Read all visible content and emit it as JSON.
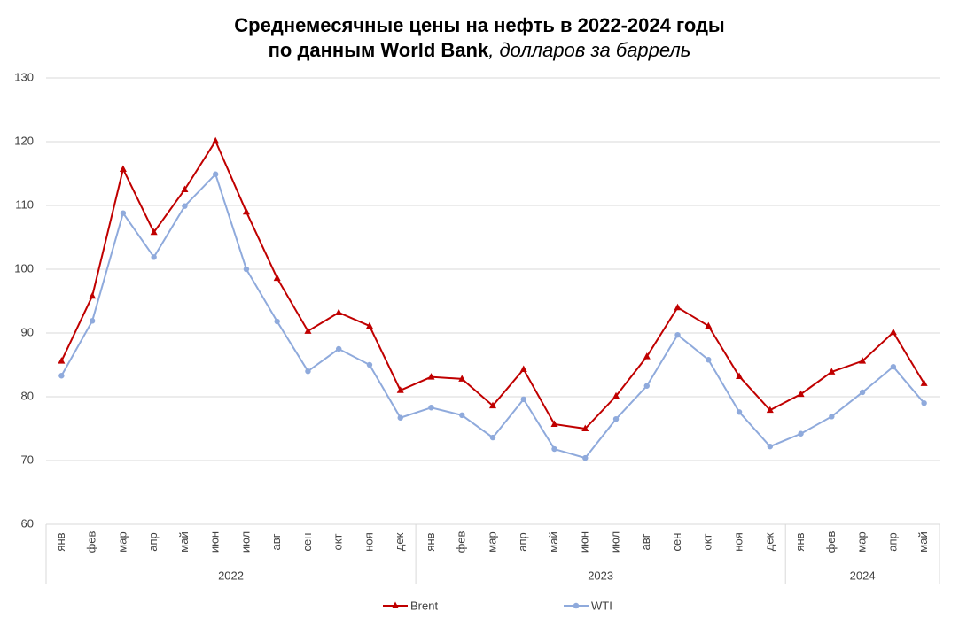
{
  "chart_data": {
    "type": "line",
    "title": [
      "Среднемесячные цены на нефть в 2022-2024 годы",
      "по данным World Bank"
    ],
    "subtitle": ", долларов за баррель",
    "category_groups": [
      {
        "name": "2022",
        "categories": [
          "янв",
          "фев",
          "мар",
          "апр",
          "май",
          "июн",
          "июл",
          "авг",
          "сен",
          "окт",
          "ноя",
          "дек"
        ]
      },
      {
        "name": "2023",
        "categories": [
          "янв",
          "фев",
          "мар",
          "апр",
          "май",
          "июн",
          "июл",
          "авг",
          "сен",
          "окт",
          "ноя",
          "дек"
        ]
      },
      {
        "name": "2024",
        "categories": [
          "янв",
          "фев",
          "мар",
          "апр",
          "май"
        ]
      }
    ],
    "series": [
      {
        "name": "Brent",
        "color": "#c00000",
        "marker": "triangle",
        "values": [
          85.6,
          95.8,
          115.7,
          105.8,
          112.5,
          120.1,
          109.0,
          98.6,
          90.3,
          93.2,
          91.1,
          81.0,
          83.1,
          82.8,
          78.6,
          84.3,
          75.7,
          75.0,
          80.1,
          86.3,
          94.0,
          91.1,
          83.2,
          77.9,
          80.4,
          83.9,
          85.6,
          90.1,
          82.1
        ]
      },
      {
        "name": "WTI",
        "color": "#8faadc",
        "marker": "circle",
        "values": [
          83.3,
          91.9,
          108.8,
          101.9,
          109.9,
          114.9,
          100.0,
          91.8,
          84.0,
          87.5,
          85.0,
          76.7,
          78.3,
          77.1,
          73.6,
          79.6,
          71.8,
          70.4,
          76.5,
          81.7,
          89.7,
          85.8,
          77.6,
          72.2,
          74.2,
          76.9,
          80.7,
          84.7,
          79.0
        ]
      }
    ],
    "ylim": [
      60,
      130
    ],
    "yticks": [
      60,
      70,
      80,
      90,
      100,
      110,
      120,
      130
    ],
    "grid": true,
    "legend": "bottom"
  }
}
